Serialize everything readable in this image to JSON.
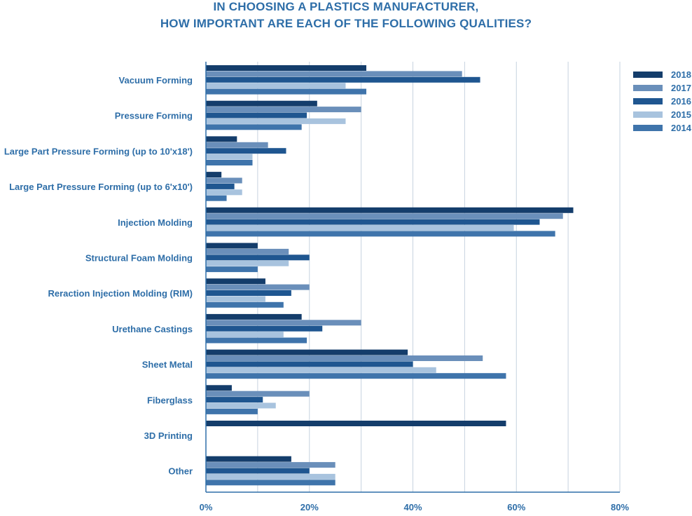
{
  "chart_data": {
    "type": "bar",
    "orientation": "horizontal",
    "title_lines": [
      "IN CHOOSING A PLASTICS MANUFACTURER,",
      "HOW IMPORTANT ARE EACH OF THE FOLLOWING QUALITIES?"
    ],
    "xlabel": "",
    "ylabel": "",
    "xlim": [
      0,
      80
    ],
    "x_ticks": [
      0,
      20,
      40,
      60,
      80
    ],
    "x_tick_labels": [
      "0%",
      "20%",
      "40%",
      "60%",
      "80%"
    ],
    "grid": true,
    "legend_position": "top-right",
    "categories": [
      "Vacuum Forming",
      "Pressure Forming",
      "Large Part Pressure Forming (up to 10'x18')",
      "Large Part Pressure Forming (up to 6'x10')",
      "Injection Molding",
      "Structural Foam Molding",
      "Reraction Injection Molding (RIM)",
      "Urethane Castings",
      "Sheet Metal",
      "Fiberglass",
      "3D Printing",
      "Other"
    ],
    "series": [
      {
        "name": "2018",
        "color": "#143d6b",
        "values": [
          31,
          21.5,
          6,
          3,
          71,
          10,
          11.5,
          18.5,
          39,
          5,
          58,
          16.5
        ]
      },
      {
        "name": "2017",
        "color": "#6a8fba",
        "values": [
          49.5,
          30,
          12,
          7,
          69,
          16,
          20,
          30,
          53.5,
          20,
          null,
          25
        ]
      },
      {
        "name": "2016",
        "color": "#1f5690",
        "values": [
          53,
          19.5,
          15.5,
          5.5,
          64.5,
          20,
          16.5,
          22.5,
          40,
          11,
          null,
          20
        ]
      },
      {
        "name": "2015",
        "color": "#a8c3de",
        "values": [
          27,
          27,
          9,
          7,
          59.5,
          16,
          11.5,
          15,
          44.5,
          13.5,
          null,
          25
        ]
      },
      {
        "name": "2014",
        "color": "#3f74ab",
        "values": [
          31,
          18.5,
          9,
          4,
          67.5,
          10,
          15,
          19.5,
          58,
          10,
          null,
          25
        ]
      }
    ]
  }
}
